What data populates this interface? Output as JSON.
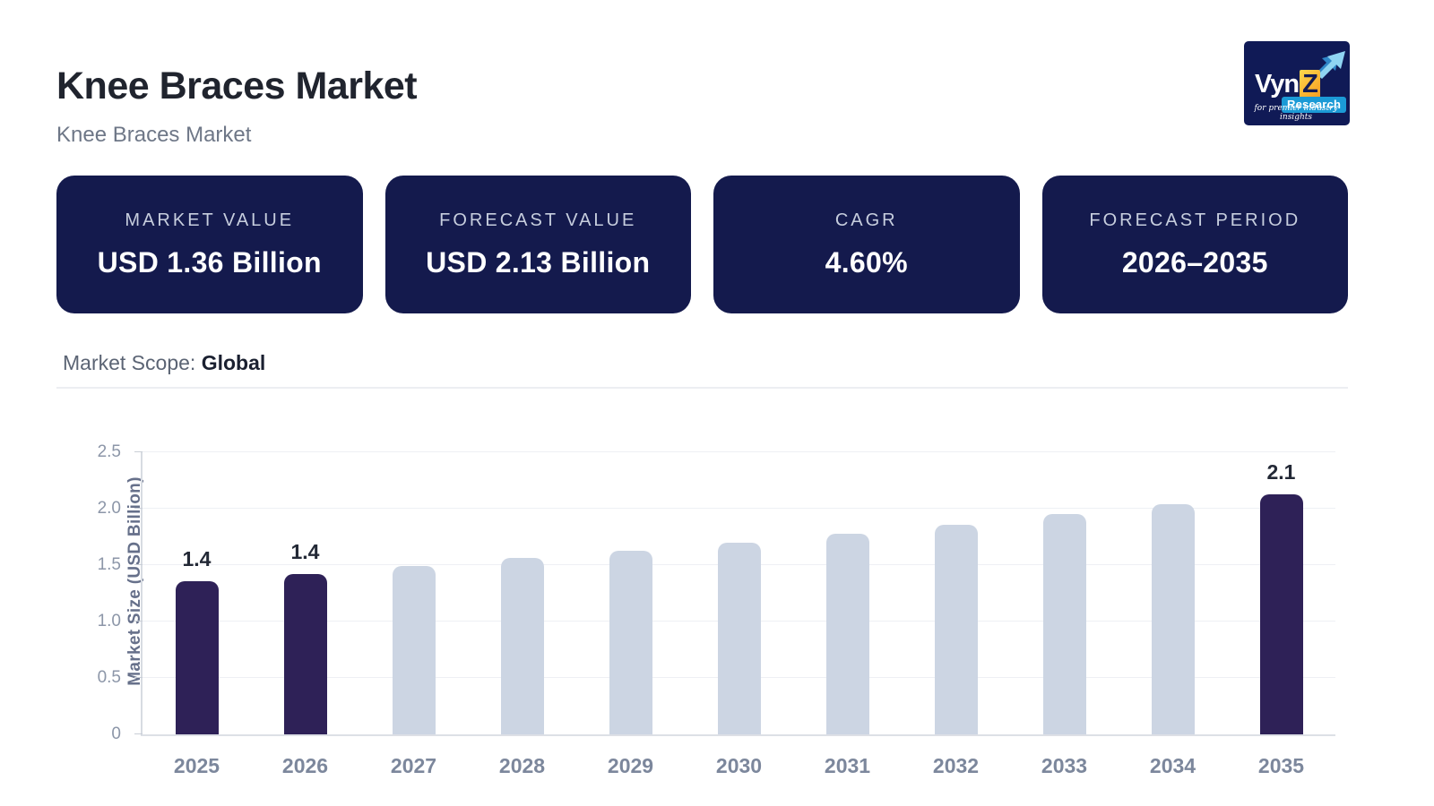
{
  "header": {
    "title": "Knee Braces Market",
    "subtitle": "Knee Braces Market"
  },
  "logo": {
    "brand": "Vyn",
    "brand_z": "Z",
    "sub_brand": "Research",
    "tagline": "for premier industry insights"
  },
  "stats": {
    "cards": [
      {
        "label": "MARKET VALUE",
        "value": "USD 1.36 Billion"
      },
      {
        "label": "FORECAST VALUE",
        "value": "USD 2.13 Billion"
      },
      {
        "label": "CAGR",
        "value": "4.60%"
      },
      {
        "label": "FORECAST PERIOD",
        "value": "2026–2035"
      }
    ]
  },
  "scope": {
    "label": "Market Scope:",
    "value": "Global"
  },
  "chart_data": {
    "type": "bar",
    "title": "",
    "xlabel": "",
    "ylabel": "Market Size (USD Billion)",
    "categories": [
      "2025",
      "2026",
      "2027",
      "2028",
      "2029",
      "2030",
      "2031",
      "2032",
      "2033",
      "2034",
      "2035"
    ],
    "values": [
      1.36,
      1.42,
      1.49,
      1.56,
      1.63,
      1.7,
      1.78,
      1.86,
      1.95,
      2.04,
      2.13
    ],
    "bar_labels": [
      "1.4",
      "1.4",
      "",
      "",
      "",
      "",
      "",
      "",
      "",
      "",
      "2.1"
    ],
    "highlighted_indices": [
      0,
      1,
      10
    ],
    "ylim": [
      0,
      2.5
    ],
    "yticks": [
      0,
      0.5,
      1.0,
      1.5,
      2.0,
      2.5
    ],
    "ytick_labels": [
      "0",
      "0.5",
      "1.0",
      "1.5",
      "2.0",
      "2.5"
    ],
    "grid": true,
    "legend": false,
    "colors": {
      "highlight": "#2e2157",
      "normal": "#ccd5e3"
    }
  },
  "brand_colors": {
    "card_navy": "#141a4d",
    "logo_navy": "#101a56",
    "logo_orange": "#f59a1e",
    "logo_blue": "#1b9ad6",
    "bar_dark": "#2e2157",
    "bar_light": "#ccd5e3"
  }
}
